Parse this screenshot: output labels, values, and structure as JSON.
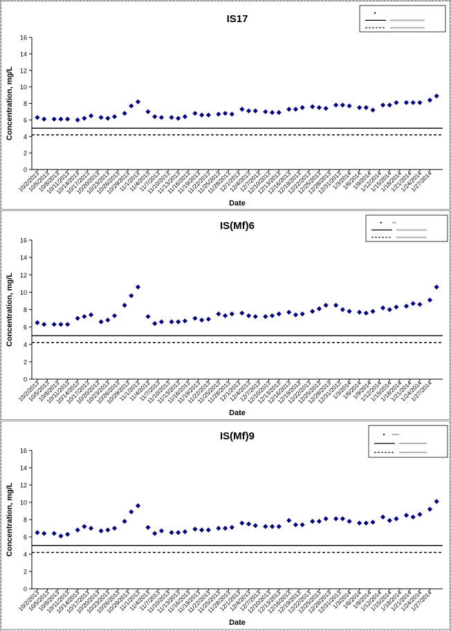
{
  "dates": [
    "10/2/2013",
    "10/5/2013",
    "10/8/2013",
    "10/11/2013",
    "10/14/2013",
    "10/17/2013",
    "10/20/2013",
    "10/23/2013",
    "10/26/2013",
    "10/29/2013",
    "11/1/2013",
    "11/4/2013",
    "11/7/2013",
    "11/10/2013",
    "11/13/2013",
    "11/16/2013",
    "11/19/2013",
    "11/22/2013",
    "11/25/2013",
    "11/28/2013",
    "12/1/2013",
    "12/4/2013",
    "12/7/2013",
    "12/10/2013",
    "12/13/2013",
    "12/16/2013",
    "12/19/2013",
    "12/22/2013",
    "12/25/2013",
    "12/28/2013",
    "12/31/2013",
    "1/3/2014",
    "1/6/2014",
    "1/9/2014",
    "1/12/2014",
    "1/15/2014",
    "1/18/2014",
    "1/21/2014",
    "1/24/2014",
    "1/27/2014"
  ],
  "chart_data": [
    {
      "type": "scatter",
      "title": "IS17",
      "xlabel": "Date",
      "ylabel": "Concentration, mg/L",
      "ylim": [
        0,
        16
      ],
      "yticks": [
        0,
        2,
        4,
        6,
        8,
        10,
        12,
        14,
        16
      ],
      "x_range": [
        "10/2/2013",
        "1/29/2014"
      ],
      "legend": "top-right",
      "legend_labels": [
        "",
        "",
        ""
      ],
      "point_color": "#000080",
      "series": [
        {
          "values": [
            6.3,
            6.1,
            6.1,
            6.1,
            6.1,
            6.0,
            6.2,
            6.5,
            6.3,
            6.2,
            6.4,
            6.8,
            7.7,
            8.2,
            7.0,
            6.4,
            6.3,
            6.3,
            6.2,
            6.4,
            6.8,
            6.6,
            6.6,
            6.7,
            6.8,
            6.7,
            7.3,
            7.1,
            7.1,
            7.0,
            6.9,
            6.9,
            7.3,
            7.3,
            7.5,
            7.6,
            7.5,
            7.4,
            7.8,
            7.8,
            7.7,
            7.5,
            7.5,
            7.2,
            7.8,
            7.8,
            8.1,
            8.1,
            8.1,
            8.1,
            8.4,
            8.9
          ],
          "x": [
            0,
            2,
            5,
            7,
            9,
            12,
            14,
            16,
            19,
            21,
            23,
            26,
            28,
            30,
            33,
            35,
            37,
            40,
            42,
            44,
            47,
            49,
            51,
            54,
            56,
            58,
            61,
            63,
            65,
            68,
            70,
            72,
            75,
            77,
            79,
            82,
            84,
            86,
            89,
            91,
            93,
            96,
            98,
            100,
            103,
            105,
            107,
            110,
            112,
            114,
            117,
            119
          ]
        },
        {
          "name": "",
          "line": "solid",
          "constant": 5.0
        },
        {
          "name": "",
          "line": "dashed",
          "constant": 4.2
        }
      ]
    },
    {
      "type": "scatter",
      "title": "IS(Mf)6",
      "xlabel": "Date",
      "ylabel": "Concentration, mg/L",
      "ylim": [
        0,
        16
      ],
      "yticks": [
        0,
        2,
        4,
        6,
        8,
        10,
        12,
        14,
        16
      ],
      "x_range": [
        "10/2/2013",
        "1/29/2014"
      ],
      "legend": "top-right",
      "legend_labels": [
        "",
        "",
        ""
      ],
      "point_color": "#000080",
      "series": [
        {
          "values": [
            6.5,
            6.3,
            6.3,
            6.3,
            6.3,
            7.0,
            7.2,
            7.4,
            6.6,
            6.8,
            7.3,
            8.5,
            9.6,
            10.6,
            7.2,
            6.4,
            6.6,
            6.6,
            6.6,
            6.7,
            7.0,
            6.8,
            6.9,
            7.5,
            7.3,
            7.5,
            7.6,
            7.3,
            7.2,
            7.2,
            7.3,
            7.5,
            7.7,
            7.4,
            7.5,
            7.8,
            8.1,
            8.5,
            8.5,
            8.0,
            7.8,
            7.7,
            7.6,
            7.8,
            8.2,
            8.0,
            8.3,
            8.4,
            8.7,
            8.6,
            9.1,
            10.6
          ],
          "x": [
            0,
            2,
            5,
            7,
            9,
            12,
            14,
            16,
            19,
            21,
            23,
            26,
            28,
            30,
            33,
            35,
            37,
            40,
            42,
            44,
            47,
            49,
            51,
            54,
            56,
            58,
            61,
            63,
            65,
            68,
            70,
            72,
            75,
            77,
            79,
            82,
            84,
            86,
            89,
            91,
            93,
            96,
            98,
            100,
            103,
            105,
            107,
            110,
            112,
            114,
            117,
            119
          ]
        },
        {
          "name": "",
          "line": "solid",
          "constant": 5.0
        },
        {
          "name": "",
          "line": "dashed",
          "constant": 4.2
        }
      ]
    },
    {
      "type": "scatter",
      "title": "IS(Mf)9",
      "xlabel": "Date",
      "ylabel": "Concentration, mg/L",
      "ylim": [
        0,
        16
      ],
      "yticks": [
        0,
        2,
        4,
        6,
        8,
        10,
        12,
        14,
        16
      ],
      "x_range": [
        "10/2/2013",
        "1/29/2014"
      ],
      "legend": "top-right",
      "legend_labels": [
        "",
        "",
        ""
      ],
      "point_color": "#000080",
      "series": [
        {
          "values": [
            6.5,
            6.4,
            6.4,
            6.1,
            6.3,
            6.8,
            7.2,
            7.0,
            6.7,
            6.8,
            7.0,
            7.8,
            8.9,
            9.6,
            7.1,
            6.4,
            6.7,
            6.5,
            6.5,
            6.6,
            6.9,
            6.8,
            6.8,
            7.0,
            7.0,
            7.1,
            7.6,
            7.5,
            7.3,
            7.2,
            7.2,
            7.2,
            7.9,
            7.4,
            7.4,
            7.8,
            7.8,
            8.1,
            8.1,
            8.1,
            7.8,
            7.6,
            7.6,
            7.7,
            8.3,
            7.9,
            8.1,
            8.5,
            8.3,
            8.6,
            9.2,
            10.1
          ],
          "x": [
            0,
            2,
            5,
            7,
            9,
            12,
            14,
            16,
            19,
            21,
            23,
            26,
            28,
            30,
            33,
            35,
            37,
            40,
            42,
            44,
            47,
            49,
            51,
            54,
            56,
            58,
            61,
            63,
            65,
            68,
            70,
            72,
            75,
            77,
            79,
            82,
            84,
            86,
            89,
            91,
            93,
            96,
            98,
            100,
            103,
            105,
            107,
            110,
            112,
            114,
            117,
            119
          ]
        },
        {
          "name": "",
          "line": "solid",
          "constant": 5.0
        },
        {
          "name": "",
          "line": "dashed",
          "constant": 4.2
        }
      ]
    }
  ]
}
